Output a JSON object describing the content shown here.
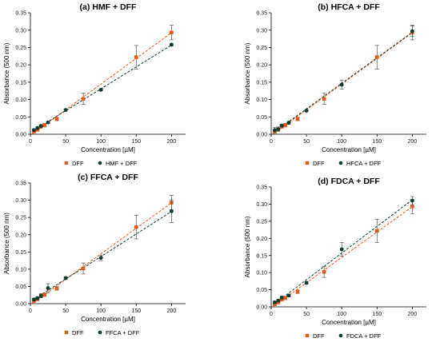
{
  "colors": {
    "dff": "#e8581c",
    "other": "#0d3b2e",
    "axis": "#000000",
    "tick_label": "#222222",
    "errorbar": "#555555"
  },
  "chart_data": [
    {
      "type": "scatter",
      "title": "HMF + DFF",
      "panel_letter": "(a)",
      "xlabel": "Concentration [µM]",
      "ylabel": "Absorbance (500 nm)",
      "xlim": [
        0,
        220
      ],
      "ylim": [
        0,
        0.35
      ],
      "xticks": [
        0,
        50,
        100,
        150,
        200
      ],
      "yticks": [
        0.0,
        0.05,
        0.1,
        0.15,
        0.2,
        0.25,
        0.3,
        0.35
      ],
      "grid": false,
      "legend": "bottom-center",
      "series": [
        {
          "name": "DFF",
          "color": "#e8581c",
          "marker": "square",
          "x": [
            5,
            10,
            15,
            20,
            37.5,
            75,
            150,
            200
          ],
          "y": [
            0.008,
            0.013,
            0.022,
            0.026,
            0.044,
            0.102,
            0.222,
            0.293
          ],
          "err": [
            0.004,
            0.004,
            0.004,
            0.005,
            0.005,
            0.016,
            0.034,
            0.021
          ],
          "fit": [
            0.0,
            0.0
          ]
        },
        {
          "name": "HMF + DFF",
          "color": "#0d3b2e",
          "marker": "circle",
          "x": [
            5,
            10,
            15,
            25,
            50,
            100,
            200
          ],
          "y": [
            0.012,
            0.018,
            0.024,
            0.034,
            0.07,
            0.128,
            0.258
          ],
          "err": [
            0.003,
            0.003,
            0.003,
            0.003,
            0.003,
            0.003,
            0.004
          ],
          "fit": [
            0.0,
            0.0
          ]
        }
      ]
    },
    {
      "type": "scatter",
      "title": "HFCA + DFF",
      "panel_letter": "(b)",
      "xlabel": "Concentration [µM]",
      "ylabel": "Absorbance (500 nm)",
      "xlim": [
        0,
        220
      ],
      "ylim": [
        0,
        0.35
      ],
      "xticks": [
        0,
        50,
        100,
        150,
        200
      ],
      "yticks": [
        0.0,
        0.05,
        0.1,
        0.15,
        0.2,
        0.25,
        0.3,
        0.35
      ],
      "grid": false,
      "legend": "bottom-center",
      "series": [
        {
          "name": "DFF",
          "color": "#e8581c",
          "marker": "square",
          "x": [
            5,
            10,
            15,
            20,
            37.5,
            75,
            150,
            200
          ],
          "y": [
            0.008,
            0.013,
            0.022,
            0.026,
            0.044,
            0.102,
            0.222,
            0.293
          ],
          "err": [
            0.004,
            0.004,
            0.004,
            0.005,
            0.005,
            0.016,
            0.034,
            0.021
          ],
          "fit": [
            0.0,
            0.0
          ]
        },
        {
          "name": "HFCA + DFF",
          "color": "#0d3b2e",
          "marker": "circle",
          "x": [
            5,
            10,
            15,
            25,
            50,
            100,
            200
          ],
          "y": [
            0.012,
            0.015,
            0.025,
            0.033,
            0.068,
            0.143,
            0.297
          ],
          "err": [
            0.008,
            0.006,
            0.004,
            0.004,
            0.003,
            0.013,
            0.015
          ],
          "fit": [
            0.0,
            0.0
          ]
        }
      ]
    },
    {
      "type": "scatter",
      "title": "FFCA + DFF",
      "panel_letter": "(c)",
      "xlabel": "Concentration [µM]",
      "ylabel": "Absorbance (500 nm)",
      "xlim": [
        0,
        220
      ],
      "ylim": [
        0,
        0.35
      ],
      "xticks": [
        0,
        50,
        100,
        150,
        200
      ],
      "yticks": [
        0.0,
        0.05,
        0.1,
        0.15,
        0.2,
        0.25,
        0.3,
        0.35
      ],
      "grid": false,
      "legend": "bottom-center",
      "series": [
        {
          "name": "DFF",
          "color": "#e8581c",
          "marker": "square",
          "x": [
            5,
            10,
            15,
            20,
            37.5,
            75,
            150,
            200
          ],
          "y": [
            0.008,
            0.013,
            0.022,
            0.026,
            0.044,
            0.102,
            0.222,
            0.293
          ],
          "err": [
            0.004,
            0.004,
            0.004,
            0.005,
            0.005,
            0.016,
            0.034,
            0.021
          ],
          "fit": [
            0.0,
            0.0
          ]
        },
        {
          "name": "FFCA + DFF",
          "color": "#0d3b2e",
          "marker": "circle",
          "x": [
            5,
            10,
            15,
            25,
            50,
            100,
            200
          ],
          "y": [
            0.012,
            0.016,
            0.023,
            0.045,
            0.074,
            0.133,
            0.268
          ],
          "err": [
            0.004,
            0.004,
            0.006,
            0.013,
            0.004,
            0.008,
            0.033
          ],
          "fit": [
            0.0,
            0.0
          ]
        }
      ]
    },
    {
      "type": "scatter",
      "title": "FDCA + DFF",
      "panel_letter": "(d)",
      "xlabel": "Concentration [µM]",
      "ylabel": "Absorbance (500 nm)",
      "xlim": [
        0,
        220
      ],
      "ylim": [
        0,
        0.35
      ],
      "xticks": [
        0,
        50,
        100,
        150,
        200
      ],
      "yticks": [
        0.0,
        0.05,
        0.1,
        0.15,
        0.2,
        0.25,
        0.3,
        0.35
      ],
      "grid": false,
      "legend": "bottom-center",
      "series": [
        {
          "name": "DFF",
          "color": "#e8581c",
          "marker": "square",
          "x": [
            5,
            10,
            15,
            20,
            37.5,
            75,
            150,
            200
          ],
          "y": [
            0.008,
            0.013,
            0.022,
            0.026,
            0.044,
            0.102,
            0.222,
            0.293
          ],
          "err": [
            0.004,
            0.004,
            0.004,
            0.005,
            0.005,
            0.016,
            0.034,
            0.021
          ],
          "fit": [
            0.0,
            0.0
          ]
        },
        {
          "name": "FDCA + DFF",
          "color": "#0d3b2e",
          "marker": "circle",
          "x": [
            5,
            10,
            15,
            25,
            50,
            100,
            200
          ],
          "y": [
            0.013,
            0.018,
            0.027,
            0.033,
            0.07,
            0.168,
            0.31
          ],
          "err": [
            0.004,
            0.004,
            0.004,
            0.004,
            0.004,
            0.02,
            0.012
          ],
          "fit": [
            0.0,
            0.0
          ]
        }
      ]
    }
  ]
}
